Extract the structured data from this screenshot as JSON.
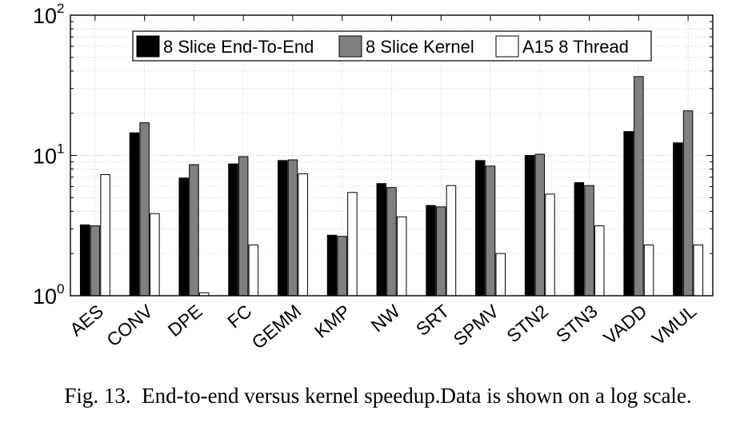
{
  "caption": {
    "label": "Fig. 13.",
    "text": "End-to-end versus kernel speedup.Data is shown on a log scale."
  },
  "chart_data": {
    "type": "bar",
    "yscale": "log",
    "ylim": [
      1,
      100
    ],
    "grid": true,
    "legend_position": "top",
    "categories": [
      "AES",
      "CONV",
      "DPE",
      "FC",
      "GEMM",
      "KMP",
      "NW",
      "SRT",
      "SPMV",
      "STN2",
      "STN3",
      "VADD",
      "VMUL"
    ],
    "series": [
      {
        "name": "8 Slice End-To-End",
        "color": "#000000",
        "values": [
          3.2,
          14.5,
          6.9,
          8.7,
          9.2,
          2.7,
          6.3,
          4.4,
          9.2,
          10.0,
          6.4,
          14.8,
          12.3
        ]
      },
      {
        "name": "8 Slice Kernel",
        "color": "#808080",
        "values": [
          3.15,
          17.1,
          8.6,
          9.8,
          9.3,
          2.65,
          5.9,
          4.3,
          8.4,
          10.2,
          6.1,
          36.5,
          20.8
        ]
      },
      {
        "name": "A15 8 Thread",
        "color": "#ffffff",
        "values": [
          7.3,
          3.85,
          1.05,
          2.3,
          7.4,
          5.45,
          3.65,
          6.1,
          2.0,
          5.3,
          3.15,
          2.3,
          2.3
        ]
      }
    ],
    "y_ticks": [
      {
        "base": "10",
        "exp": "0",
        "value": 1
      },
      {
        "base": "10",
        "exp": "1",
        "value": 10
      },
      {
        "base": "10",
        "exp": "2",
        "value": 100
      }
    ]
  }
}
